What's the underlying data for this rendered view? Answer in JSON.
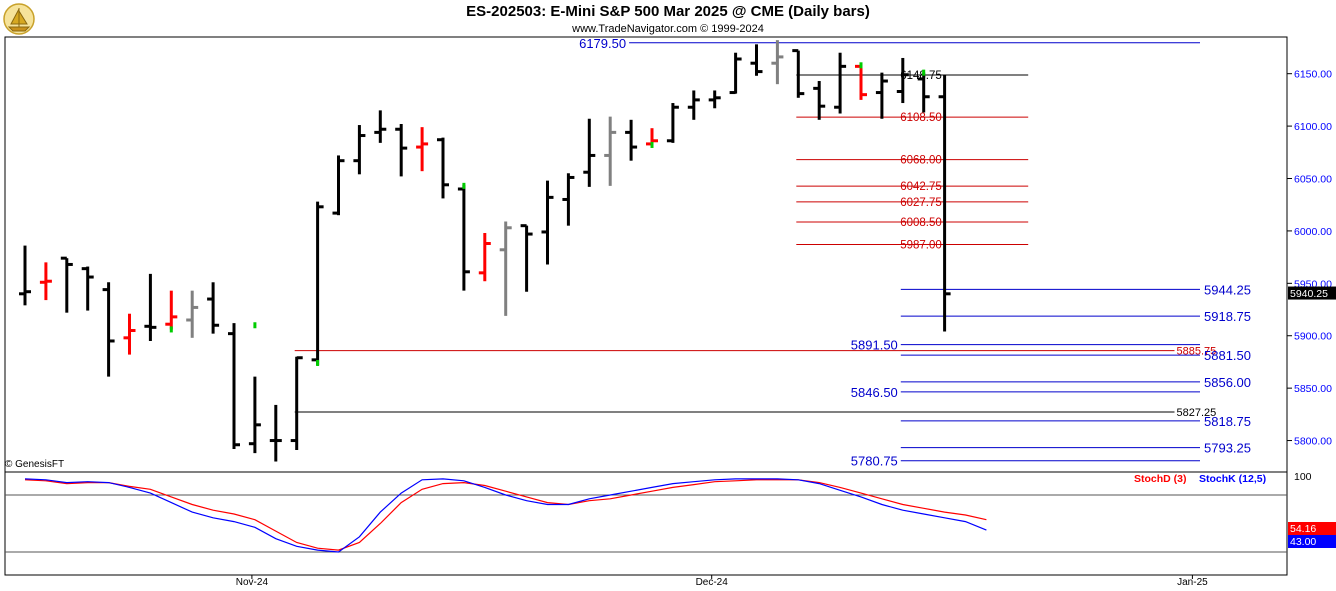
{
  "header": {
    "title": "ES-202503:  E-Mini S&P 500 Mar 2025 @ CME  (Daily bars)",
    "subtitle": "www.TradeNavigator.com © 1999-2024"
  },
  "copyright": "© GenesisFT",
  "colors": {
    "up_bar": "#000000",
    "down_bar": "#ff0000",
    "neutral_bar": "#808080",
    "blue_line": "#0000cc",
    "red_line": "#cc0000",
    "black_line": "#000000",
    "stochd": "#ff0000",
    "stochk": "#0000ff",
    "grid": "#b0b0b0",
    "axis_text": "#0000ff"
  },
  "chart_data": {
    "type": "ohlc",
    "y_axis": {
      "min": 5770,
      "max": 6185,
      "ticks": [
        "5800.00",
        "5850.00",
        "5900.00",
        "5950.00",
        "6000.00",
        "6050.00",
        "6100.00",
        "6150.00"
      ],
      "tick_values": [
        5800,
        5850,
        5900,
        5950,
        6000,
        6050,
        6100,
        6150
      ],
      "last_price_label": "5940.25",
      "last_price": 5940.25
    },
    "x_axis": {
      "labels": [
        "Nov-24",
        "Dec-24",
        "Jan-25"
      ],
      "label_bar_index": [
        11,
        33,
        56
      ]
    },
    "bars": [
      {
        "o": 5940,
        "h": 5986,
        "l": 5929,
        "c": 5942,
        "col": "black"
      },
      {
        "o": 5951,
        "h": 5970,
        "l": 5934,
        "c": 5952,
        "col": "red"
      },
      {
        "o": 5974,
        "h": 5974,
        "l": 5922,
        "c": 5968,
        "col": "black"
      },
      {
        "o": 5964,
        "h": 5966,
        "l": 5924,
        "c": 5956,
        "col": "black"
      },
      {
        "o": 5944,
        "h": 5951,
        "l": 5861,
        "c": 5895,
        "col": "black"
      },
      {
        "o": 5898,
        "h": 5921,
        "l": 5882,
        "c": 5905,
        "col": "red"
      },
      {
        "o": 5909,
        "h": 5959,
        "l": 5895,
        "c": 5908,
        "col": "black"
      },
      {
        "o": 5911,
        "h": 5943,
        "l": 5906,
        "c": 5918,
        "col": "red"
      },
      {
        "o": 5915,
        "h": 5943,
        "l": 5898,
        "c": 5927,
        "col": "grey"
      },
      {
        "o": 5935,
        "h": 5951,
        "l": 5902,
        "c": 5910,
        "col": "black"
      },
      {
        "o": 5902,
        "h": 5912,
        "l": 5792,
        "c": 5796,
        "col": "black"
      },
      {
        "o": 5797,
        "h": 5861,
        "l": 5788,
        "c": 5815,
        "col": "black"
      },
      {
        "o": 5800,
        "h": 5834,
        "l": 5780,
        "c": 5800,
        "col": "black"
      },
      {
        "o": 5800,
        "h": 5880,
        "l": 5791,
        "c": 5879,
        "col": "black"
      },
      {
        "o": 5877,
        "h": 6028,
        "l": 5872,
        "c": 6023,
        "col": "black"
      },
      {
        "o": 6017,
        "h": 6072,
        "l": 6015,
        "c": 6067,
        "col": "black"
      },
      {
        "o": 6067,
        "h": 6101,
        "l": 6054,
        "c": 6091,
        "col": "black"
      },
      {
        "o": 6094,
        "h": 6115,
        "l": 6084,
        "c": 6097,
        "col": "black"
      },
      {
        "o": 6097,
        "h": 6102,
        "l": 6052,
        "c": 6079,
        "col": "black"
      },
      {
        "o": 6080,
        "h": 6099,
        "l": 6057,
        "c": 6083,
        "col": "red"
      },
      {
        "o": 6087,
        "h": 6089,
        "l": 6031,
        "c": 6044,
        "col": "black"
      },
      {
        "o": 6040,
        "h": 6044,
        "l": 5943,
        "c": 5961,
        "col": "black"
      },
      {
        "o": 5960,
        "h": 5998,
        "l": 5952,
        "c": 5988,
        "col": "red"
      },
      {
        "o": 5982,
        "h": 6009,
        "l": 5919,
        "c": 6003,
        "col": "grey"
      },
      {
        "o": 6005,
        "h": 6005,
        "l": 5942,
        "c": 5997,
        "col": "black"
      },
      {
        "o": 5999,
        "h": 6048,
        "l": 5968,
        "c": 6032,
        "col": "black"
      },
      {
        "o": 6030,
        "h": 6055,
        "l": 6005,
        "c": 6051,
        "col": "black"
      },
      {
        "o": 6056,
        "h": 6107,
        "l": 6042,
        "c": 6072,
        "col": "black"
      },
      {
        "o": 6072,
        "h": 6109,
        "l": 6043,
        "c": 6094,
        "col": "grey"
      },
      {
        "o": 6094,
        "h": 6106,
        "l": 6067,
        "c": 6080,
        "col": "black"
      },
      {
        "o": 6083,
        "h": 6098,
        "l": 6081,
        "c": 6086,
        "col": "red"
      },
      {
        "o": 6086,
        "h": 6122,
        "l": 6084,
        "c": 6118,
        "col": "black"
      },
      {
        "o": 6118,
        "h": 6134,
        "l": 6106,
        "c": 6125,
        "col": "black"
      },
      {
        "o": 6125,
        "h": 6134,
        "l": 6117,
        "c": 6127,
        "col": "black"
      },
      {
        "o": 6132,
        "h": 6170,
        "l": 6131,
        "c": 6164,
        "col": "black"
      },
      {
        "o": 6160,
        "h": 6178,
        "l": 6148,
        "c": 6152,
        "col": "black"
      },
      {
        "o": 6160,
        "h": 6182,
        "l": 6140,
        "c": 6166,
        "col": "grey"
      },
      {
        "o": 6172,
        "h": 6172,
        "l": 6127,
        "c": 6131,
        "col": "black"
      },
      {
        "o": 6136,
        "h": 6143,
        "l": 6106,
        "c": 6119,
        "col": "black"
      },
      {
        "o": 6118,
        "h": 6170,
        "l": 6112,
        "c": 6157,
        "col": "black"
      },
      {
        "o": 6157,
        "h": 6159,
        "l": 6125,
        "c": 6130,
        "col": "red"
      },
      {
        "o": 6132,
        "h": 6151,
        "l": 6107,
        "c": 6143,
        "col": "black"
      },
      {
        "o": 6133,
        "h": 6165,
        "l": 6122,
        "c": 6149,
        "col": "black"
      },
      {
        "o": 6145,
        "h": 6151,
        "l": 6113,
        "c": 6128,
        "col": "black"
      },
      {
        "o": 6128,
        "h": 6149,
        "l": 5904,
        "c": 5940,
        "col": "black"
      }
    ],
    "levels": [
      {
        "value": 6179.5,
        "label": "6179.50",
        "color": "blue",
        "from": 29,
        "to": "end",
        "label_pos": "left"
      },
      {
        "value": 6148.75,
        "label": "6148.75",
        "color": "black",
        "from": 37,
        "to": 48,
        "label_pos": "right"
      },
      {
        "value": 6108.5,
        "label": "6108.50",
        "color": "red",
        "from": 37,
        "to": 48,
        "label_pos": "right"
      },
      {
        "value": 6068.0,
        "label": "6068.00",
        "color": "red",
        "from": 37,
        "to": 48,
        "label_pos": "right"
      },
      {
        "value": 6042.75,
        "label": "6042.75",
        "color": "red",
        "from": 37,
        "to": 48,
        "label_pos": "right"
      },
      {
        "value": 6027.75,
        "label": "6027.75",
        "color": "red",
        "from": 37,
        "to": 48,
        "label_pos": "right"
      },
      {
        "value": 6008.5,
        "label": "6008.50",
        "color": "red",
        "from": 37,
        "to": 48,
        "label_pos": "right"
      },
      {
        "value": 5987.0,
        "label": "5987.00",
        "color": "red",
        "from": 37,
        "to": 48,
        "label_pos": "right"
      },
      {
        "value": 5944.25,
        "label": "5944.25",
        "color": "blue",
        "from": 42,
        "to": "end",
        "label_pos": "right"
      },
      {
        "value": 5918.75,
        "label": "5918.75",
        "color": "blue",
        "from": 42,
        "to": "end",
        "label_pos": "right"
      },
      {
        "value": 5891.5,
        "label": "5891.50",
        "color": "blue",
        "from": 42,
        "to": "end",
        "label_pos": "left"
      },
      {
        "value": 5885.75,
        "label": "5885.75",
        "color": "red",
        "from": 13,
        "to": 55,
        "label_pos": "right"
      },
      {
        "value": 5881.5,
        "label": "5881.50",
        "color": "blue",
        "from": 42,
        "to": "end",
        "label_pos": "right"
      },
      {
        "value": 5856.0,
        "label": "5856.00",
        "color": "blue",
        "from": 42,
        "to": "end",
        "label_pos": "right"
      },
      {
        "value": 5846.5,
        "label": "5846.50",
        "color": "blue",
        "from": 42,
        "to": "end",
        "label_pos": "left"
      },
      {
        "value": 5827.25,
        "label": "5827.25",
        "color": "black",
        "from": 13,
        "to": 55,
        "label_pos": "right"
      },
      {
        "value": 5818.75,
        "label": "5818.75",
        "color": "blue",
        "from": 42,
        "to": "end",
        "label_pos": "right"
      },
      {
        "value": 5793.25,
        "label": "5793.25",
        "color": "blue",
        "from": 42,
        "to": "end",
        "label_pos": "right"
      },
      {
        "value": 5780.75,
        "label": "5780.75",
        "color": "blue",
        "from": 42,
        "to": "end",
        "label_pos": "left"
      }
    ],
    "green_marks": [
      {
        "bar": 7,
        "value": 5906
      },
      {
        "bar": 11,
        "value": 5910
      },
      {
        "bar": 14,
        "value": 5874
      },
      {
        "bar": 21,
        "value": 6043
      },
      {
        "bar": 30,
        "value": 6082
      },
      {
        "bar": 40,
        "value": 6158
      },
      {
        "bar": 43,
        "value": 6151
      }
    ],
    "stochastic": {
      "ylim": [
        0,
        100
      ],
      "y_label": "100",
      "levels": [
        80,
        20
      ],
      "stochd_label": "StochD (3)",
      "stochk_label": "StochK (12,5)",
      "stochd_last": "54.16",
      "stochk_last": "43.00",
      "stochd": [
        96,
        95,
        92,
        93,
        93,
        89,
        86,
        78,
        70,
        64,
        60,
        54,
        42,
        30,
        24,
        22,
        30,
        50,
        72,
        86,
        92,
        93,
        90,
        84,
        78,
        72,
        70,
        74,
        76,
        80,
        84,
        88,
        91,
        94,
        95,
        96,
        96,
        96,
        93,
        88,
        82,
        76,
        70,
        66,
        62,
        59,
        54
      ],
      "stochk": [
        97,
        96,
        93,
        94,
        93,
        88,
        82,
        72,
        62,
        56,
        52,
        46,
        34,
        26,
        22,
        20,
        36,
        62,
        82,
        96,
        97,
        95,
        88,
        80,
        74,
        70,
        70,
        76,
        80,
        84,
        88,
        92,
        94,
        96,
        97,
        97,
        97,
        96,
        92,
        85,
        78,
        70,
        64,
        60,
        56,
        52,
        43
      ]
    }
  }
}
